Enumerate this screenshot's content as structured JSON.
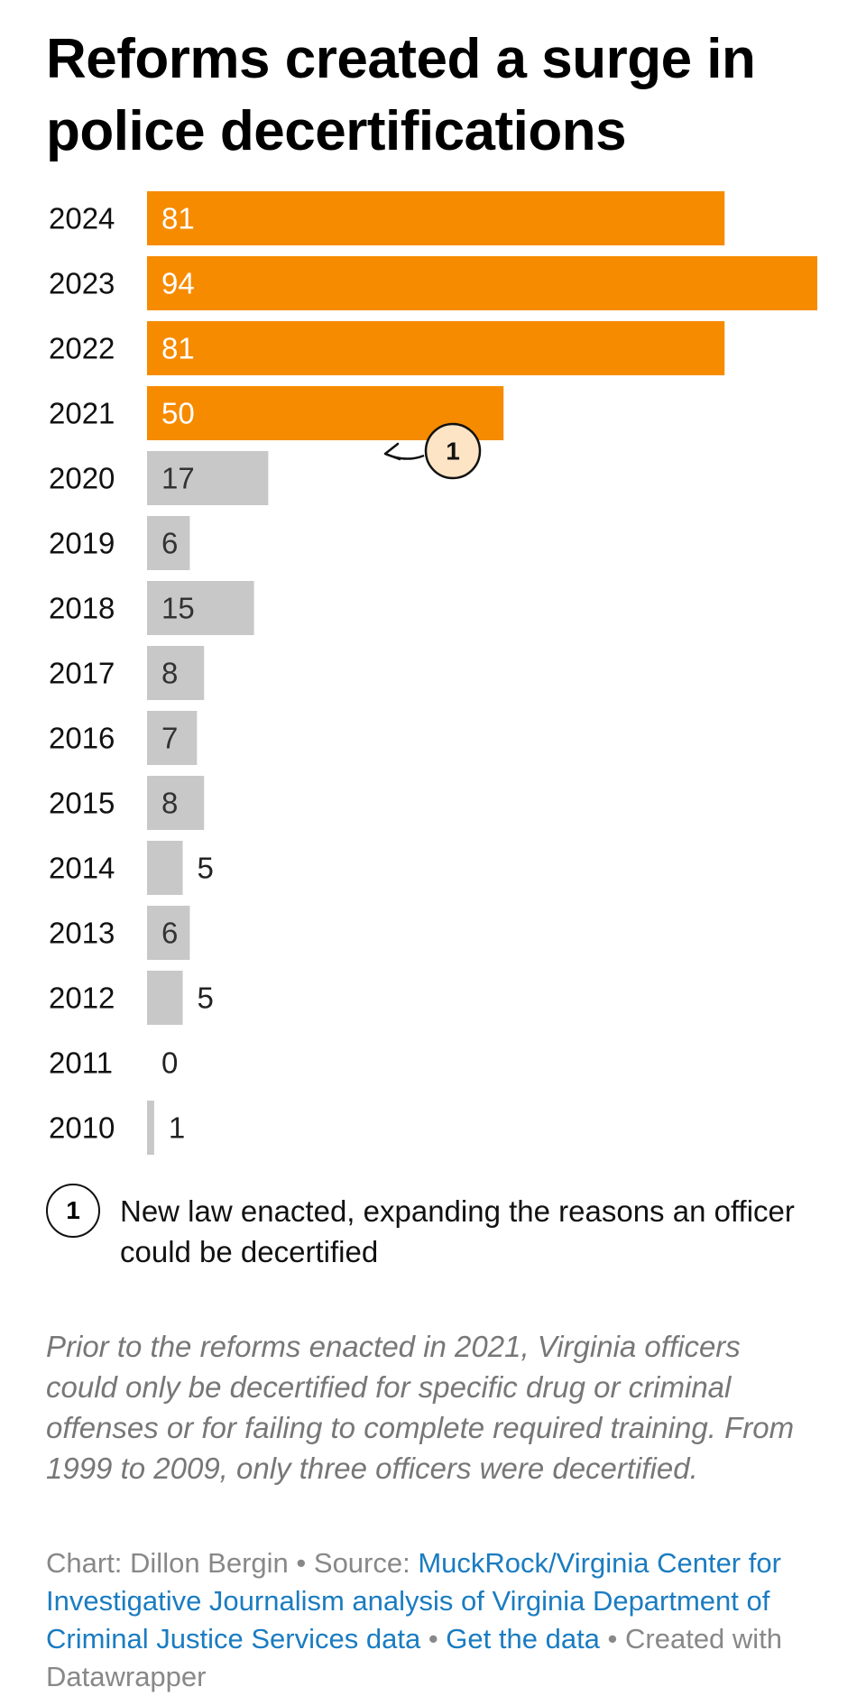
{
  "chart_data": {
    "type": "bar",
    "orientation": "horizontal",
    "title": "Reforms created a surge in police decertifications",
    "categories": [
      "2024",
      "2023",
      "2022",
      "2021",
      "2020",
      "2019",
      "2018",
      "2017",
      "2016",
      "2015",
      "2014",
      "2013",
      "2012",
      "2011",
      "2010"
    ],
    "values": [
      81,
      94,
      81,
      50,
      17,
      6,
      15,
      8,
      7,
      8,
      5,
      6,
      5,
      0,
      1
    ],
    "highlight_from_year": "2021",
    "xlim": [
      0,
      94
    ],
    "grid": false,
    "annotations": [
      {
        "marker": "1",
        "category": "2021",
        "text": "New law enacted, expanding the reasons an officer could be decertified"
      }
    ],
    "colors": {
      "highlight": "#f68b00",
      "base": "#c8c8c8",
      "label_on_highlight": "#ffffff",
      "label_on_base": "#333333",
      "marker_fill": "#fce4c5"
    }
  },
  "description": "Prior to the reforms enacted in 2021, Virginia officers could only be decertified for specific drug or criminal offenses or for failing to complete required training. From 1999 to 2009, only three officers were decertified.",
  "footer": {
    "credit": "Chart: Dillon Bergin",
    "separator": " • ",
    "source_label": "Source: ",
    "source_link": "MuckRock/Virginia Center for Investigative Journalism analysis of Virginia Department of Criminal Justice Services data",
    "get_data_link": "Get the data",
    "created_with": "Created with Datawrapper"
  }
}
